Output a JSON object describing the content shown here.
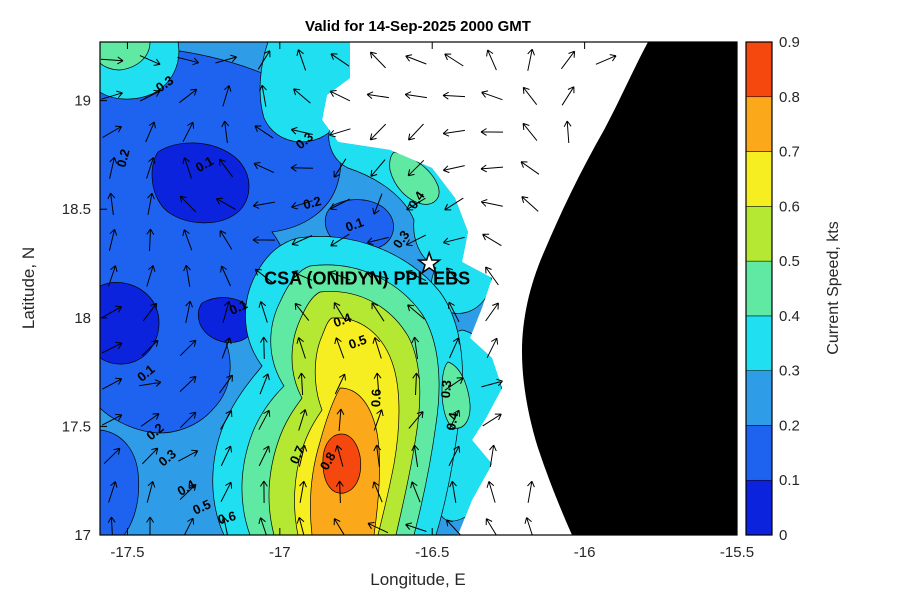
{
  "window": {
    "background": "#ffffff"
  },
  "chart_data": {
    "type": "filled-contour-quiver-map",
    "title": "Valid for 14-Sep-2025 2000 GMT",
    "xlabel": "Longitude, E",
    "ylabel": "Latitude, N",
    "xlim": [
      -17.59,
      -15.5
    ],
    "ylim": [
      17.0,
      19.27
    ],
    "xticks": [
      -17.5,
      -17,
      -16.5,
      -16,
      -15.5
    ],
    "yticks": [
      19,
      18.5,
      18,
      17.5,
      17
    ],
    "grid": false,
    "legend_position": "right-colorbar",
    "colorbar": {
      "label": "Current Speed, kts",
      "ticks": [
        0,
        0.1,
        0.2,
        0.3,
        0.4,
        0.5,
        0.6,
        0.7,
        0.8,
        0.9
      ],
      "band_colors": [
        "#0b23dc",
        "#1e63f0",
        "#2f9ce8",
        "#1fdff0",
        "#5fe9a2",
        "#b4e832",
        "#f6ee20",
        "#fba81a",
        "#f5480f"
      ]
    },
    "land_color": "#000000",
    "nodata_color": "#ffffff",
    "quiver_color": "#000000",
    "station": {
      "label": "CSA (ONIDYN) PPL EBS",
      "lon": -16.51,
      "lat": 18.25
    },
    "contour_labels": [
      {
        "value": "0.3",
        "lon": -17.37,
        "lat": 19.06,
        "rot": -35
      },
      {
        "value": "0.2",
        "lon": -17.5,
        "lat": 18.73,
        "rot": -75
      },
      {
        "value": "0.1",
        "lon": -17.24,
        "lat": 18.69,
        "rot": -30
      },
      {
        "value": "0.3",
        "lon": -16.91,
        "lat": 18.8,
        "rot": -40
      },
      {
        "value": "0.2",
        "lon": -16.89,
        "lat": 18.51,
        "rot": -15
      },
      {
        "value": "0.1",
        "lon": -16.75,
        "lat": 18.41,
        "rot": -20
      },
      {
        "value": "0.4",
        "lon": -16.54,
        "lat": 18.53,
        "rot": -55
      },
      {
        "value": "0.3",
        "lon": -16.59,
        "lat": 18.35,
        "rot": -55
      },
      {
        "value": "0.1",
        "lon": -17.13,
        "lat": 18.03,
        "rot": -25
      },
      {
        "value": "0.1",
        "lon": -17.43,
        "lat": 17.73,
        "rot": -40
      },
      {
        "value": "0.2",
        "lon": -17.4,
        "lat": 17.46,
        "rot": -40
      },
      {
        "value": "0.3",
        "lon": -17.36,
        "lat": 17.34,
        "rot": -40
      },
      {
        "value": "0.4",
        "lon": -17.3,
        "lat": 17.2,
        "rot": -30
      },
      {
        "value": "0.5",
        "lon": -17.25,
        "lat": 17.11,
        "rot": -25
      },
      {
        "value": "0.6",
        "lon": -17.17,
        "lat": 17.06,
        "rot": -15
      },
      {
        "value": "0.4",
        "lon": -16.79,
        "lat": 17.97,
        "rot": -20
      },
      {
        "value": "0.5",
        "lon": -16.74,
        "lat": 17.87,
        "rot": -20
      },
      {
        "value": "0.6",
        "lon": -16.67,
        "lat": 17.63,
        "rot": -88
      },
      {
        "value": "0.7",
        "lon": -16.93,
        "lat": 17.36,
        "rot": -65
      },
      {
        "value": "0.8",
        "lon": -16.83,
        "lat": 17.33,
        "rot": -60
      },
      {
        "value": "0.3",
        "lon": -16.44,
        "lat": 17.67,
        "rot": -85
      },
      {
        "value": "0.4",
        "lon": -16.42,
        "lat": 17.52,
        "rot": -80
      }
    ]
  }
}
